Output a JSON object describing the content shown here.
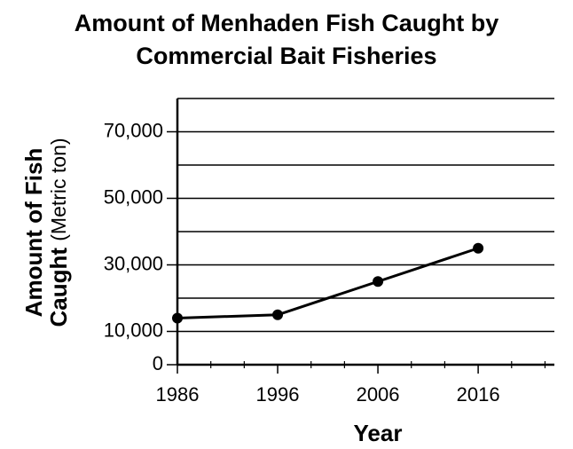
{
  "chart_data": {
    "type": "line",
    "title": [
      "Amount of Menhaden Fish Caught by",
      "Commercial Bait Fisheries"
    ],
    "y_label": [
      {
        "bold": "Amount of Fish"
      },
      {
        "bold": "Caught",
        "normal": "(Metric ton)"
      }
    ],
    "x_label": "Year",
    "x": [
      1986,
      1996,
      2006,
      2016
    ],
    "series": [
      {
        "color": "#000000",
        "values": [
          14000,
          15000,
          25000,
          35000
        ]
      }
    ],
    "xlim": [
      1986,
      2023.6
    ],
    "xticks": [
      1986,
      1996,
      2006,
      2016
    ],
    "ylim": [
      0,
      80000
    ],
    "yticks": [
      0,
      {
        "value": 10000,
        "label": "10,000"
      },
      {
        "value": 30000,
        "label": "30,000"
      },
      {
        "value": 50000,
        "label": "50,000"
      },
      {
        "value": 70000,
        "label": "70,000"
      }
    ],
    "ygrid": [
      20000,
      40000,
      60000,
      80000
    ],
    "grid": true
  }
}
